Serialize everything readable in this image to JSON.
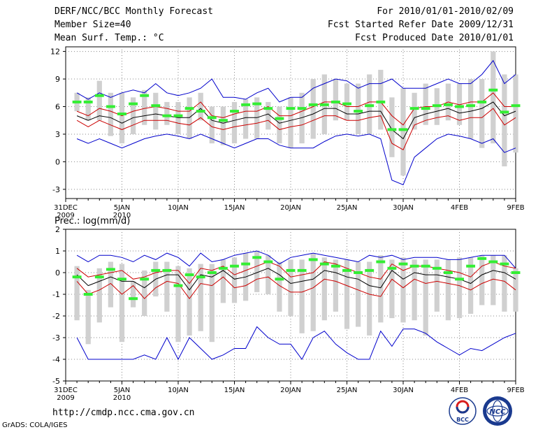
{
  "header": {
    "title": "DERF/NCC/BCC Monthly Forecast",
    "member_size": "Member Size=40",
    "variable": "Mean Surf. Temp.: °C",
    "period": "For 2010/01/01-2010/02/09",
    "started": "Fcst Started Refer Date 2009/12/31",
    "produced": "Fcst Produced Date 2010/01/01"
  },
  "footer": {
    "url": "http://cmdp.ncc.cma.gov.cn",
    "grads": "GrADS: COLA/IGES",
    "logo_bcc": "BCC",
    "logo_ncc": "NCC"
  },
  "colors": {
    "envelope": "#0000cc",
    "spread": "#cc0000",
    "mean": "#000000",
    "box": "#d0d0d0",
    "median": "#33ee33",
    "grid": "#888888"
  },
  "chart_data": [
    {
      "type": "line",
      "title": "Mean Surf. Temp.: °C",
      "ylim": [
        -4,
        12.5
      ],
      "yticks": [
        "12",
        "9",
        "6",
        "3",
        "0",
        "-3"
      ],
      "ytick_values": [
        12,
        9,
        6,
        3,
        0,
        -3
      ],
      "xlabels": [
        "31DEC",
        "5JAN",
        "10JAN",
        "15JAN",
        "20JAN",
        "25JAN",
        "30JAN",
        "4FEB",
        "9FEB"
      ],
      "xlabels2": [
        "2009",
        "2010"
      ],
      "xtick_days": [
        0,
        5,
        10,
        15,
        20,
        25,
        30,
        35,
        40
      ],
      "x": [
        1,
        2,
        3,
        4,
        5,
        6,
        7,
        8,
        9,
        10,
        11,
        12,
        13,
        14,
        15,
        16,
        17,
        18,
        19,
        20,
        21,
        22,
        23,
        24,
        25,
        26,
        27,
        28,
        29,
        30,
        31,
        32,
        33,
        34,
        35,
        36,
        37,
        38,
        39,
        40
      ],
      "series": [
        {
          "name": "max",
          "values": [
            2.5,
            2,
            2.5,
            2,
            1.5,
            2,
            2.5,
            2.8,
            3,
            2.8,
            2.5,
            3,
            2.5,
            2,
            1.5,
            2,
            2.5,
            2.5,
            1.8,
            1.5,
            1.5,
            1.5,
            2.2,
            2.8,
            3,
            2.8,
            3,
            2.5,
            -2,
            -2.5,
            0.5,
            1.5,
            2.5,
            3,
            2.8,
            2.5,
            2,
            2.5,
            1,
            1.5
          ]
        },
        {
          "name": "min",
          "values": [
            7.5,
            6.8,
            7.5,
            7,
            7.5,
            7.8,
            7.5,
            8.5,
            7.5,
            7.2,
            7.5,
            8,
            9,
            7,
            7,
            6.8,
            7.5,
            8,
            6.5,
            7,
            7,
            8,
            8.5,
            9,
            8.8,
            8,
            8.5,
            8.5,
            9,
            8,
            8,
            8,
            8.5,
            9,
            8.5,
            8.5,
            9.5,
            11,
            8.5,
            9.5
          ]
        }
      ],
      "upper": [
        5.5,
        5,
        5.8,
        5.5,
        5,
        5.5,
        5.8,
        6,
        5.8,
        5.5,
        5.5,
        6.5,
        5,
        4.8,
        5.2,
        5.5,
        5.5,
        6,
        5,
        5,
        5.5,
        6,
        6.5,
        6.5,
        6,
        6,
        6.5,
        6.5,
        5,
        4,
        5.8,
        6,
        6,
        6.5,
        6.2,
        6.5,
        6.5,
        7.5,
        6,
        6
      ],
      "lower": [
        4.5,
        3.8,
        4.5,
        4,
        3.5,
        4,
        4.5,
        4.5,
        4.5,
        4.2,
        4,
        4.8,
        3.8,
        3.5,
        3.8,
        4,
        4.2,
        4.5,
        3.5,
        3.8,
        4,
        4.5,
        5,
        5,
        4.5,
        4.5,
        4.8,
        5,
        2,
        1.3,
        4,
        4.5,
        4.8,
        5,
        4.5,
        4.8,
        4.8,
        5.8,
        4,
        4.8
      ],
      "mean": [
        5,
        4.5,
        5,
        4.8,
        4.2,
        4.8,
        5,
        5.2,
        5,
        4.8,
        4.8,
        5.8,
        4.5,
        4.2,
        4.5,
        4.8,
        4.8,
        5.2,
        4.2,
        4.5,
        4.8,
        5.2,
        5.8,
        5.8,
        5.2,
        5.2,
        5.5,
        5.5,
        3.5,
        2.5,
        4.8,
        5.2,
        5.5,
        5.8,
        5.3,
        5.5,
        5.8,
        6.5,
        5,
        5.5
      ],
      "median": [
        6.5,
        6.5,
        7.2,
        6,
        5.2,
        6.3,
        7.2,
        6.1,
        5,
        5,
        5.8,
        5.5,
        4.8,
        4.5,
        5.5,
        6.2,
        6.3,
        5.8,
        4.7,
        5.8,
        5.8,
        6.2,
        6.2,
        6.5,
        6.3,
        5.5,
        6.1,
        6.5,
        3.5,
        3.5,
        5.8,
        5.8,
        6.1,
        6.2,
        6,
        6.1,
        6.5,
        7.8,
        5.4,
        6.1
      ],
      "box_lo": [
        5.5,
        4.5,
        4.5,
        2.8,
        2,
        3,
        4,
        3.5,
        4,
        3,
        2.5,
        4.5,
        2,
        1.8,
        2,
        2.5,
        2.5,
        3.5,
        2,
        1.5,
        2,
        2.5,
        3,
        4.5,
        4.5,
        3,
        3,
        3.5,
        0.5,
        -1.5,
        3.5,
        4,
        4,
        4.5,
        4,
        2.5,
        1.5,
        2,
        -0.5,
        1
      ],
      "box_hi": [
        7.5,
        7,
        8.8,
        7.5,
        7.5,
        7,
        7.8,
        7.5,
        6.5,
        6.5,
        7,
        7.5,
        6,
        6,
        6.5,
        6.8,
        7,
        6.5,
        6,
        7,
        7.5,
        9,
        9.5,
        9,
        8.5,
        8.5,
        9.5,
        10,
        7,
        8,
        7.5,
        8.5,
        8,
        8.5,
        8.5,
        9,
        9,
        12,
        9.5,
        9.5
      ]
    },
    {
      "type": "line",
      "title": "Prec.: log(mm/d)",
      "ylim": [
        -5,
        2
      ],
      "yticks": [
        "2",
        "1",
        "0",
        "-1",
        "-2",
        "-3",
        "-4",
        "-5"
      ],
      "ytick_values": [
        2,
        1,
        0,
        -1,
        -2,
        -3,
        -4,
        -5
      ],
      "xlabels": [
        "31DEC",
        "5JAN",
        "10JAN",
        "15JAN",
        "20JAN",
        "25JAN",
        "30JAN",
        "4FEB",
        "9FEB"
      ],
      "xlabels2": [
        "2009",
        "2010"
      ],
      "xtick_days": [
        0,
        5,
        10,
        15,
        20,
        25,
        30,
        35,
        40
      ],
      "x": [
        1,
        2,
        3,
        4,
        5,
        6,
        7,
        8,
        9,
        10,
        11,
        12,
        13,
        14,
        15,
        16,
        17,
        18,
        19,
        20,
        21,
        22,
        23,
        24,
        25,
        26,
        27,
        28,
        29,
        30,
        31,
        32,
        33,
        34,
        35,
        36,
        37,
        38,
        39,
        40
      ],
      "series": [
        {
          "name": "min",
          "values": [
            -3,
            -4,
            -4,
            -4,
            -4,
            -4,
            -3.8,
            -4,
            -3,
            -4,
            -3,
            -3.5,
            -4,
            -3.8,
            -3.5,
            -3.5,
            -2.5,
            -3,
            -3.3,
            -3.3,
            -4,
            -3,
            -2.7,
            -3.3,
            -3.7,
            -4,
            -4,
            -2.7,
            -3.4,
            -2.6,
            -2.6,
            -2.8,
            -3.2,
            -3.5,
            -3.8,
            -3.5,
            -3.6,
            -3.3,
            -3,
            -2.8
          ]
        },
        {
          "name": "max",
          "values": [
            0.8,
            0.5,
            0.8,
            0.8,
            0.7,
            0.5,
            0.8,
            0.6,
            0.9,
            0.7,
            0.3,
            0.9,
            0.5,
            0.6,
            0.8,
            0.9,
            1,
            0.8,
            0.4,
            0.7,
            0.8,
            0.9,
            0.8,
            0.7,
            0.6,
            0.5,
            0.8,
            0.7,
            0.8,
            0.6,
            0.7,
            0.7,
            0.7,
            0.6,
            0.6,
            0.7,
            0.8,
            0.8,
            0.8,
            0.2
          ]
        }
      ],
      "upper": [
        0.2,
        -0.2,
        -0.1,
        0,
        0.1,
        -0.3,
        -0.2,
        0,
        0.1,
        0.1,
        -0.5,
        0.2,
        0.1,
        0.3,
        -0.1,
        0.1,
        0.3,
        0.5,
        0.3,
        -0.2,
        -0.1,
        0,
        0.5,
        0.4,
        0.2,
        0,
        -0.2,
        -0.3,
        0.4,
        0.1,
        0.3,
        0.3,
        0.2,
        0.1,
        0,
        -0.2,
        0.3,
        0.5,
        0.3,
        0.2
      ],
      "lower": [
        -0.4,
        -1,
        -0.8,
        -0.5,
        -1,
        -0.6,
        -1.2,
        -0.7,
        -0.4,
        -0.5,
        -1.2,
        -0.5,
        -0.6,
        -0.2,
        -0.7,
        -0.6,
        -0.3,
        -0.2,
        -0.6,
        -0.9,
        -0.9,
        -0.7,
        -0.3,
        -0.4,
        -0.6,
        -0.8,
        -1,
        -1.1,
        -0.3,
        -0.7,
        -0.3,
        -0.5,
        -0.4,
        -0.5,
        -0.6,
        -0.8,
        -0.5,
        -0.3,
        -0.4,
        -0.8
      ],
      "mean": [
        -0.1,
        -0.6,
        -0.4,
        -0.2,
        -0.4,
        -0.4,
        -0.7,
        -0.3,
        -0.1,
        -0.1,
        -0.8,
        -0.1,
        -0.2,
        0.1,
        -0.3,
        -0.2,
        0,
        0.2,
        -0.1,
        -0.5,
        -0.4,
        -0.3,
        0.1,
        0,
        -0.2,
        -0.3,
        -0.6,
        -0.7,
        0.1,
        -0.3,
        0,
        -0.1,
        -0.1,
        -0.2,
        -0.3,
        -0.5,
        -0.1,
        0.1,
        0,
        -0.3
      ],
      "median": [
        -0.2,
        -1,
        -0.2,
        0.15,
        -0.3,
        -1.2,
        -0.3,
        0.1,
        0.1,
        -0.6,
        -0.1,
        -0.2,
        0,
        0.2,
        0.3,
        0.4,
        0.7,
        0.5,
        -0.3,
        0.1,
        0.1,
        0.6,
        0.4,
        0.3,
        0.1,
        0,
        0.1,
        0.5,
        0.2,
        0.4,
        0.3,
        0.3,
        0.2,
        0,
        -0.3,
        0.3,
        0.65,
        0.5,
        0.4,
        0
      ],
      "box_lo": [
        -2.2,
        -3.3,
        -2.3,
        -1.6,
        -3.2,
        -1.6,
        -2,
        -1.1,
        -1.8,
        -3.2,
        -2.9,
        -2.7,
        -3.2,
        -1.4,
        -1.4,
        -1.3,
        -0.9,
        -1,
        -1.8,
        -2,
        -2.8,
        -2.7,
        -2.2,
        -1.8,
        -2.6,
        -2.5,
        -2.9,
        -2.3,
        -2.1,
        -2.3,
        -2.2,
        -2.9,
        -1.8,
        -2.2,
        -2.1,
        -1.9,
        -1.5,
        -1.5,
        -1.8,
        -1.8
      ],
      "box_hi": [
        0.3,
        -0.8,
        0.2,
        0.5,
        0.4,
        -0.4,
        0.1,
        0.5,
        0.5,
        0.3,
        0.2,
        0.4,
        0.4,
        0.6,
        0.7,
        0.9,
        1,
        0.8,
        0.5,
        0.6,
        0.6,
        0.9,
        0.7,
        0.6,
        0.6,
        0.5,
        0.5,
        0.8,
        0.6,
        0.7,
        0.6,
        0.6,
        0.6,
        0.6,
        0.7,
        0.7,
        0.8,
        0.8,
        0.8,
        0.2
      ]
    }
  ]
}
